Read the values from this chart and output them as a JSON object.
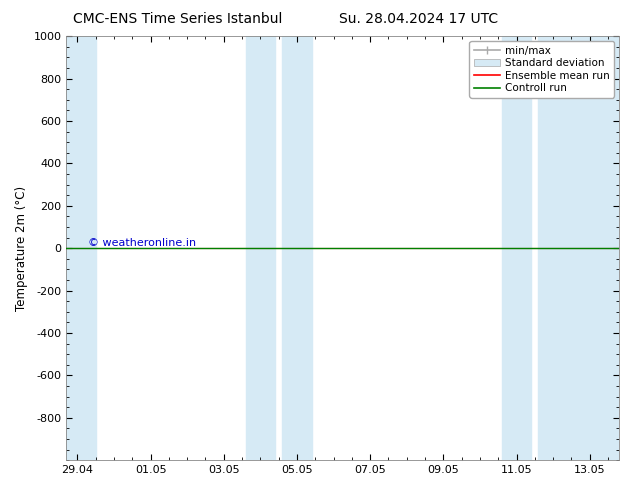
{
  "title_left": "CMC-ENS Time Series Istanbul",
  "title_right": "Su. 28.04.2024 17 UTC",
  "ylabel": "Temperature 2m (°C)",
  "xtick_labels": [
    "29.04",
    "01.05",
    "03.05",
    "05.05",
    "07.05",
    "09.05",
    "11.05",
    "13.05"
  ],
  "xtick_positions": [
    0,
    2,
    4,
    6,
    8,
    10,
    12,
    14
  ],
  "xlim": [
    -0.3,
    14.8
  ],
  "ylim_top": -1000,
  "ylim_bottom": 1000,
  "ytick_values": [
    -800,
    -600,
    -400,
    -200,
    0,
    200,
    400,
    600,
    800,
    1000
  ],
  "ytick_labels": [
    "-800",
    "-600",
    "-400",
    "-200",
    "0",
    "200",
    "400",
    "600",
    "800",
    "1000"
  ],
  "background_color": "#ffffff",
  "plot_bg_color": "#ffffff",
  "shaded_color": "#d6eaf5",
  "shaded_regions": [
    {
      "x_start": -0.3,
      "x_end": 0.5
    },
    {
      "x_start": 4.6,
      "x_end": 5.4
    },
    {
      "x_start": 5.6,
      "x_end": 6.4
    },
    {
      "x_start": 11.6,
      "x_end": 12.4
    },
    {
      "x_start": 12.6,
      "x_end": 14.8
    }
  ],
  "control_run_color": "#008000",
  "ensemble_mean_color": "#ff0000",
  "watermark_text": "© weatheronline.in",
  "watermark_color": "#0000cc",
  "legend_entries": [
    {
      "label": "min/max",
      "color": "#aaaaaa"
    },
    {
      "label": "Standard deviation",
      "color": "#c8dce8"
    },
    {
      "label": "Ensemble mean run",
      "color": "#ff0000"
    },
    {
      "label": "Controll run",
      "color": "#008000"
    }
  ],
  "title_fontsize": 10,
  "tick_fontsize": 8,
  "legend_fontsize": 7.5,
  "ylabel_fontsize": 8.5
}
